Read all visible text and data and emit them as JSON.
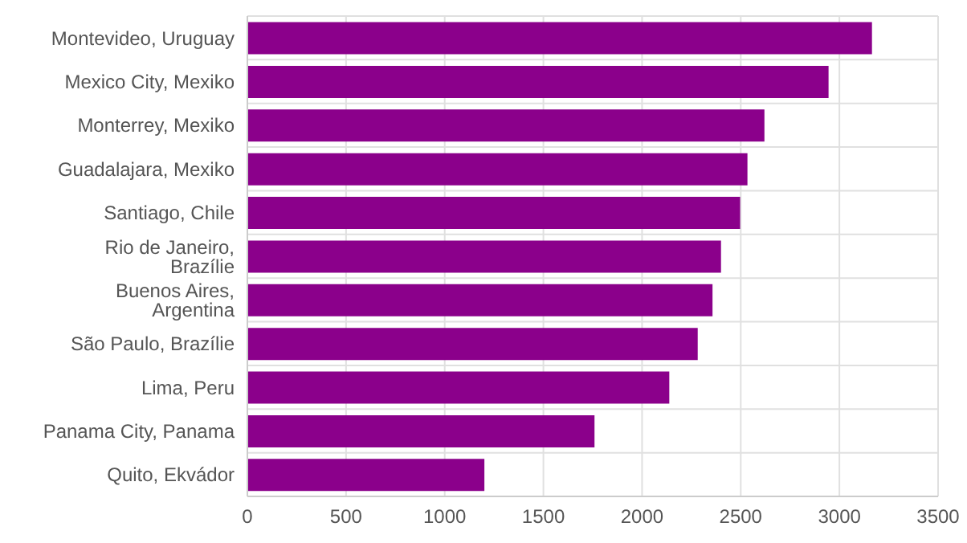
{
  "chart_data": {
    "type": "bar",
    "orientation": "horizontal",
    "categories": [
      "Montevideo, Uruguay",
      "Mexico City, Mexiko",
      "Monterrey, Mexiko",
      "Guadalajara, Mexiko",
      "Santiago, Chile",
      "Rio de Janeiro, Brazílie",
      "Buenos Aires, Argentina",
      "São Paulo, Brazílie",
      "Lima, Peru",
      "Panama City, Panama",
      "Quito, Ekvádor"
    ],
    "values": [
      3165,
      2945,
      2620,
      2534,
      2497,
      2400,
      2357,
      2282,
      2138,
      1759,
      1201
    ],
    "color": "#8b008b",
    "xlim": [
      0,
      3500
    ],
    "xticks": [
      0,
      500,
      1000,
      1500,
      2000,
      2500,
      3000,
      3500
    ],
    "grid": true
  }
}
